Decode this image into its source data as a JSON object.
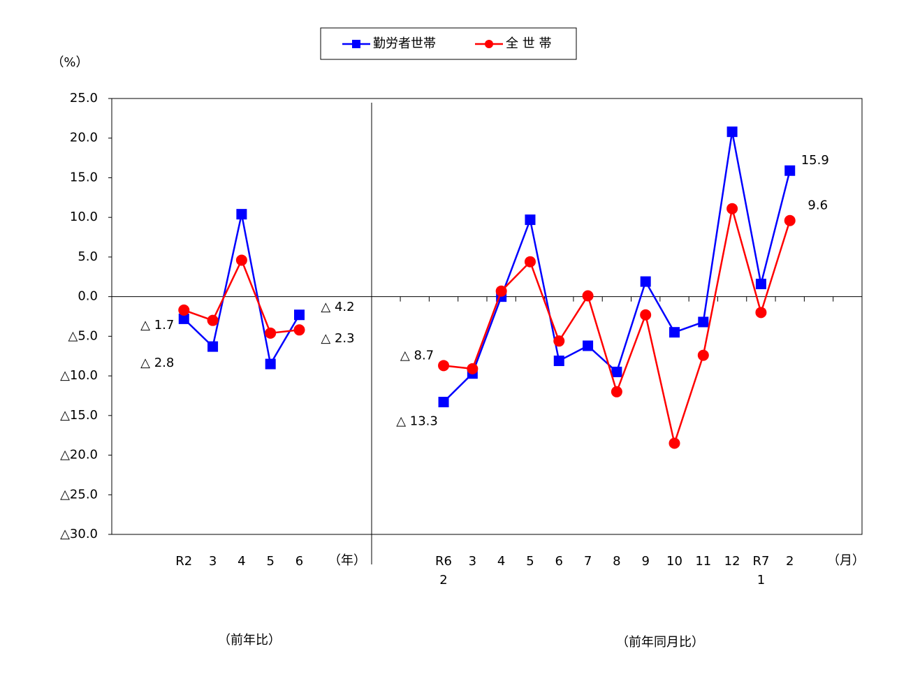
{
  "chart_data": {
    "type": "line",
    "y_label": "（%）",
    "categories": [
      null,
      null,
      "R2",
      "3",
      "4",
      "5",
      "6",
      null,
      null,
      null,
      null,
      "R6\n2",
      "3",
      "4",
      "5",
      "6",
      "7",
      "8",
      "9",
      "10",
      "11",
      "12",
      "R7\n1",
      "2",
      null,
      null
    ],
    "series": [
      {
        "name": "勤労者世帯",
        "color": "#0000ff",
        "marker": "square",
        "values": [
          null,
          null,
          -2.8,
          -6.3,
          10.4,
          -8.5,
          -2.3,
          null,
          null,
          null,
          null,
          -13.3,
          -9.7,
          0.0,
          9.7,
          -8.1,
          -6.2,
          -9.5,
          1.9,
          -4.5,
          -3.2,
          20.8,
          1.6,
          15.9,
          null,
          null
        ],
        "value_labels": [
          null,
          null,
          "△ 2.8",
          null,
          null,
          null,
          "△ 2.3",
          null,
          null,
          null,
          null,
          "△ 13.3",
          null,
          null,
          null,
          null,
          null,
          null,
          null,
          null,
          null,
          null,
          null,
          "15.9",
          null,
          null
        ],
        "label_color": "#3366ee"
      },
      {
        "name": "全 世 帯",
        "color": "#ff0000",
        "marker": "circle",
        "values": [
          null,
          null,
          -1.7,
          -3.0,
          4.6,
          -4.6,
          -4.2,
          null,
          null,
          null,
          null,
          -8.7,
          -9.1,
          0.7,
          4.4,
          -5.6,
          0.1,
          -12.0,
          -2.3,
          -18.5,
          -7.4,
          11.1,
          -2.0,
          9.6,
          null,
          null
        ],
        "value_labels": [
          null,
          null,
          "△ 1.7",
          null,
          null,
          null,
          "△ 4.2",
          null,
          null,
          null,
          null,
          "△ 8.7",
          null,
          null,
          null,
          null,
          null,
          null,
          null,
          null,
          null,
          null,
          null,
          "9.6",
          null,
          null
        ],
        "label_color": "#ff0000"
      }
    ],
    "ylim": [
      -30,
      25
    ],
    "yticks": [
      {
        "value": 25,
        "label": "25.0"
      },
      {
        "value": 20,
        "label": "20.0"
      },
      {
        "value": 15,
        "label": "15.0"
      },
      {
        "value": 10,
        "label": "10.0"
      },
      {
        "value": 5,
        "label": "5.0"
      },
      {
        "value": 0,
        "label": "0.0"
      },
      {
        "value": -5,
        "label": "△5.0"
      },
      {
        "value": -10,
        "label": "△10.0"
      },
      {
        "value": -15,
        "label": "△15.0"
      },
      {
        "value": -20,
        "label": "△20.0"
      },
      {
        "value": -25,
        "label": "△25.0"
      },
      {
        "value": -30,
        "label": "△30.0"
      }
    ],
    "annotations": [
      "（年）",
      "（月）",
      "（前年比）",
      "（前年同月比）"
    ],
    "legend": "top"
  }
}
